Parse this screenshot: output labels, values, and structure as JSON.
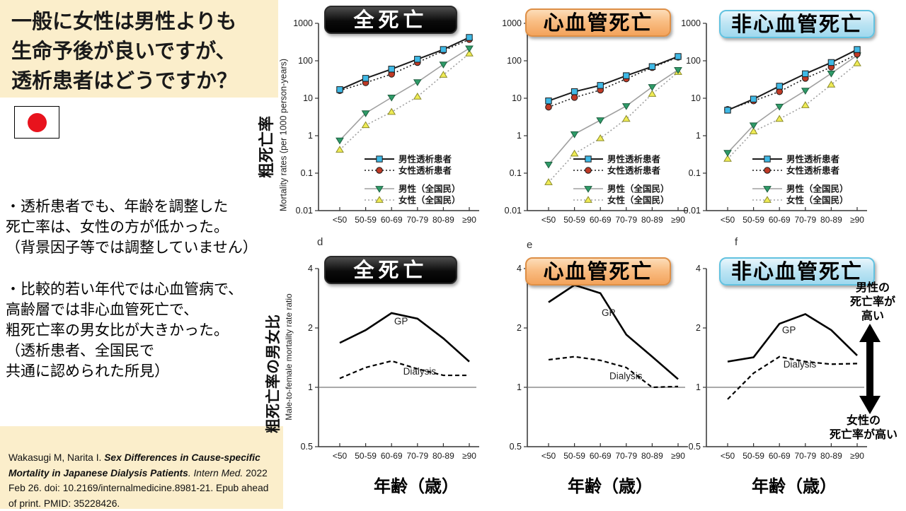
{
  "slide": {
    "title_lines": [
      "一般に女性は男性よりも",
      "生命予後が良いですが、",
      "透析患者はどうですか？"
    ],
    "flag": "japan-flag",
    "notes_block1": {
      "l1": "・透析患者でも、年齢を調整した",
      "l2": "死亡率は、女性の方が低かった。",
      "l3": "（背景因子等では調整していません）"
    },
    "notes_block2": {
      "l1": "・比較的若い年代では心血管病で、",
      "l2": "高齢層では非心血管死亡で、",
      "l3": "粗死亡率の男女比が大きかった。",
      "l4": "（透析患者、全国民で",
      "l5": "共通に認められた所見）"
    },
    "citation": {
      "pre": "Wakasugi M, Narita I. ",
      "title": "Sex Differences in Cause-specific Mortality in Japanese Dialysis Patients",
      "journal": ". Intern Med.",
      "tail": " 2022 Feb 26. doi: 10.2169/internalmedicine.8981-21. Epub ahead of print. PMID: 35228426."
    }
  },
  "axis": {
    "categories": [
      "<50",
      "50-59",
      "60-69",
      "70-79",
      "80-89",
      "≥90"
    ],
    "x_label": "年齢（歳）",
    "top_y_ticks": [
      "1000",
      "100",
      "10",
      "1",
      "0.1",
      "0.01"
    ],
    "bottom_y_ticks": [
      "4",
      "2",
      "1",
      "0.5"
    ],
    "top_y_label_jp": "粗死亡率",
    "top_y_label_en": "Mortality rates (per 1000 person-years)",
    "bottom_y_label_jp": "粗死亡率の男女比",
    "bottom_y_label_en": "Male-to-female mortality rate ratio"
  },
  "annotation": {
    "top_l1": "男性の",
    "top_l2": "死亡率が",
    "top_l3": "高い",
    "bottom_l1": "女性の",
    "bottom_l2": "死亡率が高い"
  },
  "colors": {
    "cream_bg": "#FBEECB",
    "flag_red": "#E8131D",
    "badge_black": "#111111",
    "badge_orange": "#F9BE84",
    "badge_blue": "#BCE4F3",
    "male_dialysis_marker": "#3FB9E6",
    "female_dialysis_marker": "#BF3A26",
    "male_gp_marker": "#2E9B68",
    "female_gp_marker": "#EFEB55",
    "gray_line": "#A0A0A0",
    "black_line": "#1A1A1A"
  },
  "chart_data": [
    {
      "id": "a",
      "type": "line",
      "row": "top",
      "yscale": "log10",
      "title": "全死亡",
      "badge_style": "black",
      "ylim": [
        0.01,
        1000
      ],
      "legend": true,
      "categories": [
        "<50",
        "50-59",
        "60-69",
        "70-79",
        "80-89",
        "≥90"
      ],
      "series": [
        {
          "name": "男性透析患者",
          "marker": "square",
          "color": "#3FB9E6",
          "edge": "#1A1A1A",
          "line": "solid-black",
          "values": [
            17,
            34,
            60,
            110,
            200,
            420
          ]
        },
        {
          "name": "女性透析患者",
          "marker": "circle",
          "color": "#BF3A26",
          "edge": "#1A1A1A",
          "line": "dotted-black",
          "values": [
            16,
            26,
            44,
            90,
            185,
            370
          ]
        },
        {
          "name": "男性（全国民）",
          "marker": "triangle-down",
          "color": "#2E9B68",
          "edge": "#1F5F40",
          "line": "solid-gray",
          "values": [
            0.75,
            4.0,
            10.5,
            27,
            80,
            215
          ]
        },
        {
          "name": "女性（全国民）",
          "marker": "triangle-up",
          "color": "#EFEB55",
          "edge": "#8B8B2A",
          "line": "dotted-gray",
          "values": [
            0.42,
            1.9,
            4.3,
            11,
            42,
            155
          ]
        }
      ]
    },
    {
      "id": "b",
      "type": "line",
      "row": "top",
      "yscale": "log10",
      "title": "心血管死亡",
      "badge_style": "orange",
      "ylim": [
        0.01,
        1000
      ],
      "legend": true,
      "categories": [
        "<50",
        "50-59",
        "60-69",
        "70-79",
        "80-89",
        "≥90"
      ],
      "series": [
        {
          "name": "男性透析患者",
          "marker": "square",
          "color": "#3FB9E6",
          "edge": "#1A1A1A",
          "line": "solid-black",
          "values": [
            8.5,
            15,
            22,
            40,
            70,
            130
          ]
        },
        {
          "name": "女性透析患者",
          "marker": "circle",
          "color": "#BF3A26",
          "edge": "#1A1A1A",
          "line": "dotted-black",
          "values": [
            5.8,
            10.5,
            16.5,
            33,
            66,
            125
          ]
        },
        {
          "name": "男性（全国民）",
          "marker": "triangle-down",
          "color": "#2E9B68",
          "edge": "#1F5F40",
          "line": "solid-gray",
          "values": [
            0.17,
            1.1,
            2.6,
            6.2,
            20,
            57
          ]
        },
        {
          "name": "女性（全国民）",
          "marker": "triangle-up",
          "color": "#EFEB55",
          "edge": "#8B8B2A",
          "line": "dotted-gray",
          "values": [
            0.057,
            0.33,
            0.85,
            2.8,
            13,
            50
          ]
        }
      ]
    },
    {
      "id": "c",
      "type": "line",
      "row": "top",
      "yscale": "log10",
      "title": "非心血管死亡",
      "badge_style": "blue",
      "ylim": [
        0.01,
        1000
      ],
      "legend": true,
      "categories": [
        "<50",
        "50-59",
        "60-69",
        "70-79",
        "80-89",
        "≥90"
      ],
      "series": [
        {
          "name": "男性透析患者",
          "marker": "square",
          "color": "#3FB9E6",
          "edge": "#1A1A1A",
          "line": "solid-black",
          "values": [
            4.8,
            9.5,
            21,
            45,
            90,
            200
          ]
        },
        {
          "name": "女性透析患者",
          "marker": "circle",
          "color": "#BF3A26",
          "edge": "#1A1A1A",
          "line": "dotted-black",
          "values": [
            5.0,
            8.5,
            15,
            34,
            68,
            150
          ]
        },
        {
          "name": "男性（全国民）",
          "marker": "triangle-down",
          "color": "#2E9B68",
          "edge": "#1F5F40",
          "line": "solid-gray",
          "values": [
            0.35,
            1.9,
            6.0,
            16,
            46,
            140
          ]
        },
        {
          "name": "女性（全国民）",
          "marker": "triangle-up",
          "color": "#EFEB55",
          "edge": "#8B8B2A",
          "line": "dotted-gray",
          "values": [
            0.24,
            1.3,
            2.8,
            6.5,
            23,
            85
          ]
        }
      ]
    },
    {
      "id": "d",
      "panel": "d",
      "type": "line",
      "row": "bottom",
      "yscale": "log2",
      "title": "全死亡",
      "badge_style": "black",
      "ylim": [
        0.5,
        4
      ],
      "ref_line": 1,
      "x_label": "年齢（歳）",
      "categories": [
        "<50",
        "50-59",
        "60-69",
        "70-79",
        "80-89",
        "≥90"
      ],
      "series": [
        {
          "name": "GP",
          "line": "solid-black-thick",
          "values": [
            1.68,
            1.95,
            2.38,
            2.23,
            1.77,
            1.35
          ],
          "label_pos": {
            "xi": 2.1,
            "v": 2.08
          }
        },
        {
          "name": "Dialysis",
          "line": "dashed-black",
          "values": [
            1.11,
            1.26,
            1.36,
            1.24,
            1.15,
            1.15
          ],
          "label_pos": {
            "xi": 2.45,
            "v": 1.16
          }
        }
      ]
    },
    {
      "id": "e",
      "panel": "e",
      "type": "line",
      "row": "bottom",
      "yscale": "log2",
      "title": "心血管死亡",
      "badge_style": "orange",
      "ylim": [
        0.5,
        4
      ],
      "ref_line": 1,
      "x_label": "年齢（歳）",
      "categories": [
        "<50",
        "50-59",
        "60-69",
        "70-79",
        "80-89",
        "≥90"
      ],
      "series": [
        {
          "name": "GP",
          "line": "solid-black-thick",
          "values": [
            2.7,
            3.3,
            3.0,
            1.85,
            1.43,
            1.1
          ],
          "label_pos": {
            "xi": 2.05,
            "v": 2.3
          }
        },
        {
          "name": "Dialysis",
          "line": "dashed-black",
          "values": [
            1.38,
            1.43,
            1.37,
            1.26,
            1.0,
            1.01
          ],
          "label_pos": {
            "xi": 2.35,
            "v": 1.1
          }
        }
      ]
    },
    {
      "id": "f",
      "panel": "f",
      "type": "line",
      "row": "bottom",
      "yscale": "log2",
      "title": "非心血管死亡",
      "badge_style": "blue",
      "ylim": [
        0.5,
        4
      ],
      "ref_line": 1,
      "x_label": "年齢（歳）",
      "categories": [
        "<50",
        "50-59",
        "60-69",
        "70-79",
        "80-89",
        "≥90"
      ],
      "series": [
        {
          "name": "GP",
          "line": "solid-black-thick",
          "values": [
            1.35,
            1.42,
            2.1,
            2.35,
            1.95,
            1.45
          ],
          "label_pos": {
            "xi": 2.1,
            "v": 1.88
          }
        },
        {
          "name": "Dialysis",
          "line": "dashed-black",
          "values": [
            0.87,
            1.18,
            1.43,
            1.35,
            1.31,
            1.32
          ],
          "label_pos": {
            "xi": 2.15,
            "v": 1.26
          }
        }
      ]
    }
  ]
}
